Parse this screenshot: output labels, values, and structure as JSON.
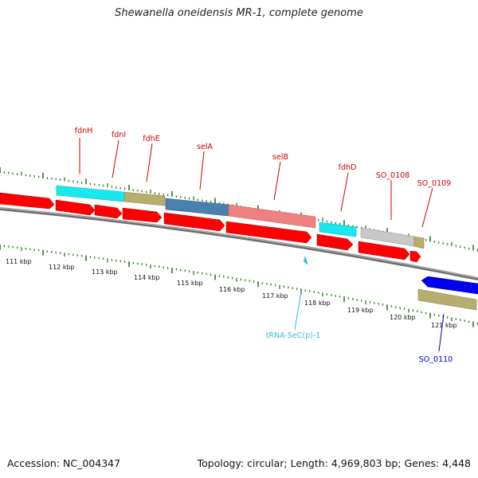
{
  "title": "Shewanella oneidensis MR-1, complete genome",
  "footer": {
    "accession": "Accession: NC_004347",
    "topology": "Topology: circular; Length: 4,969,803 bp; Genes: 4,448"
  },
  "colors": {
    "forward_cds": "#ff0000",
    "reverse_cds": "#0000ee",
    "tick_major": "#2a7a1a",
    "label_red": "#cc0000",
    "label_blue": "#0000cc",
    "label_trna": "#33bbdd",
    "backbone": "#808080"
  },
  "scale_labels": [
    "111 kbp",
    "112 kbp",
    "113 kbp",
    "114 kbp",
    "115 kbp",
    "116 kbp",
    "117 kbp",
    "118 kbp",
    "119 kbp",
    "120 kbp",
    "121 kbp"
  ],
  "gene_labels": [
    {
      "id": "fdnH",
      "text": "fdnH",
      "color": "red"
    },
    {
      "id": "fdnI",
      "text": "fdnI",
      "color": "red"
    },
    {
      "id": "fdhE",
      "text": "fdhE",
      "color": "red"
    },
    {
      "id": "selA",
      "text": "selA",
      "color": "red"
    },
    {
      "id": "selB",
      "text": "selB",
      "color": "red"
    },
    {
      "id": "fdhD",
      "text": "fdhD",
      "color": "red"
    },
    {
      "id": "SO_0108",
      "text": "SO_0108",
      "color": "red"
    },
    {
      "id": "SO_0109",
      "text": "SO_0109",
      "color": "red"
    },
    {
      "id": "tRNA",
      "text": "tRNA-SeC(p)-1",
      "color": "trna"
    },
    {
      "id": "SO_0110",
      "text": "SO_0110",
      "color": "blue"
    }
  ]
}
